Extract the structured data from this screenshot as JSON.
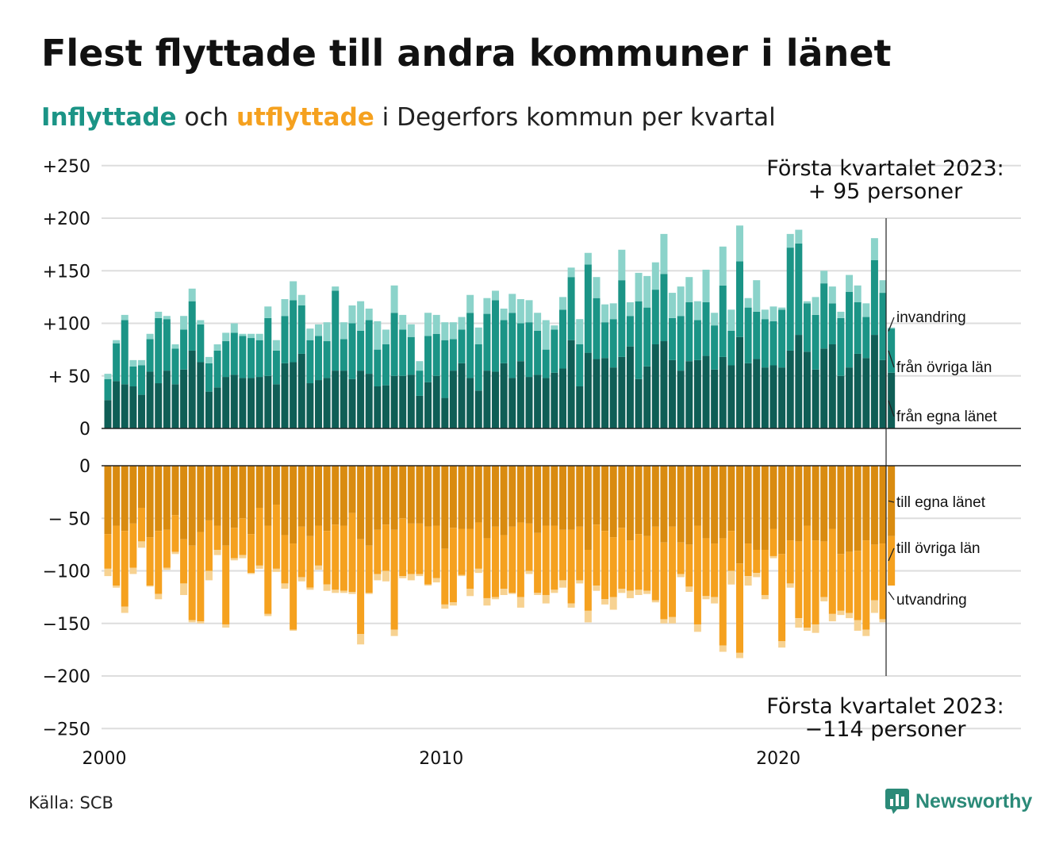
{
  "title": "Flest flyttade till andra kommuner i länet",
  "subtitle": {
    "in_word": "Inflyttade",
    "mid": " och ",
    "out_word": "utflyttade",
    "rest": " i Degerfors kommun per kvartal"
  },
  "colors": {
    "in_egna": "#0f5e56",
    "in_ovriga": "#1b9486",
    "in_invandring": "#8bd3ca",
    "out_egna": "#d98b10",
    "out_ovriga": "#f5a11f",
    "out_utvandring": "#f7d291",
    "grid": "#dddddd",
    "text": "#111111",
    "brand": "#2b8a78"
  },
  "annotations": {
    "top": [
      "Första kvartalet 2023:",
      "+ 95 personer"
    ],
    "bottom": [
      "Första kvartalet 2023:",
      "−114 personer"
    ]
  },
  "source": "Källa: SCB",
  "brand": {
    "name": "Newsworthy",
    "icon": "newsworthy-logo-icon"
  },
  "chart_data": {
    "type": "bar",
    "stacked": true,
    "period": "quarter",
    "first_quarter": "2000-Q1",
    "x_tick_labels": [
      "2000",
      "2010",
      "2020"
    ],
    "grid": true,
    "legend": "inline labels at right end",
    "panels": [
      {
        "name": "in",
        "ylim": [
          0,
          250
        ],
        "y_tick_labels": [
          "+250",
          "+200",
          "+150",
          "+100",
          "+ 50",
          "0"
        ],
        "series": [
          {
            "name": "från egna länet",
            "values": [
              27,
              45,
              42,
              40,
              32,
              54,
              43,
              55,
              42,
              56,
              74,
              63,
              35,
              39,
              49,
              51,
              48,
              48,
              49,
              50,
              42,
              62,
              63,
              71,
              43,
              46,
              48,
              55,
              55,
              47,
              55,
              52,
              40,
              41,
              50,
              50,
              51,
              31,
              44,
              50,
              29,
              55,
              62,
              48,
              36,
              55,
              54,
              62,
              48,
              64,
              49,
              51,
              48,
              53,
              57,
              84,
              40,
              72,
              66,
              67,
              58,
              68,
              78,
              47,
              59,
              80,
              83,
              65,
              55,
              64,
              65,
              69,
              56,
              68,
              60,
              87,
              62,
              66,
              58,
              60,
              58,
              74,
              89,
              73,
              56,
              76,
              80,
              50,
              58,
              71,
              67,
              89,
              65,
              53
            ]
          },
          {
            "name": "från övriga län",
            "values": [
              20,
              36,
              61,
              19,
              28,
              31,
              62,
              49,
              34,
              38,
              47,
              36,
              27,
              35,
              34,
              40,
              40,
              38,
              35,
              55,
              32,
              45,
              59,
              46,
              41,
              42,
              35,
              76,
              30,
              53,
              38,
              51,
              35,
              39,
              60,
              44,
              36,
              24,
              44,
              40,
              55,
              30,
              32,
              62,
              44,
              54,
              68,
              41,
              62,
              36,
              52,
              42,
              27,
              41,
              56,
              60,
              40,
              84,
              58,
              34,
              46,
              73,
              29,
              74,
              56,
              52,
              64,
              40,
              52,
              56,
              38,
              51,
              42,
              68,
              33,
              72,
              53,
              45,
              46,
              42,
              55,
              98,
              87,
              46,
              52,
              62,
              39,
              55,
              72,
              49,
              39,
              71,
              64,
              42
            ]
          },
          {
            "name": "invandring",
            "values": [
              5,
              3,
              5,
              6,
              5,
              5,
              6,
              3,
              4,
              13,
              12,
              4,
              6,
              6,
              8,
              9,
              2,
              4,
              6,
              11,
              10,
              16,
              18,
              10,
              11,
              11,
              18,
              4,
              16,
              17,
              28,
              11,
              27,
              14,
              26,
              14,
              12,
              9,
              22,
              18,
              17,
              16,
              12,
              17,
              16,
              15,
              9,
              11,
              18,
              23,
              21,
              17,
              28,
              4,
              12,
              9,
              24,
              11,
              20,
              17,
              15,
              29,
              13,
              27,
              30,
              26,
              38,
              24,
              28,
              24,
              18,
              31,
              12,
              37,
              20,
              34,
              9,
              30,
              9,
              14,
              2,
              13,
              13,
              2,
              17,
              12,
              16,
              6,
              16,
              16,
              13,
              21,
              12,
              1
            ]
          }
        ],
        "annotation_value": 95
      },
      {
        "name": "out",
        "ylim": [
          -250,
          0
        ],
        "y_tick_labels": [
          "0",
          "− 50",
          "−100",
          "−150",
          "−200",
          "−250"
        ],
        "series": [
          {
            "name": "till egna länet",
            "values": [
              -65,
              -57,
              -62,
              -55,
              -40,
              -68,
              -62,
              -61,
              -47,
              -70,
              -76,
              -63,
              -52,
              -57,
              -76,
              -59,
              -50,
              -65,
              -40,
              -57,
              -37,
              -66,
              -74,
              -58,
              -67,
              -57,
              -62,
              -56,
              -57,
              -45,
              -70,
              -76,
              -61,
              -56,
              -61,
              -50,
              -55,
              -55,
              -58,
              -57,
              -79,
              -59,
              -60,
              -60,
              -54,
              -69,
              -58,
              -66,
              -58,
              -54,
              -55,
              -64,
              -57,
              -57,
              -61,
              -61,
              -58,
              -80,
              -56,
              -62,
              -68,
              -59,
              -71,
              -65,
              -67,
              -58,
              -73,
              -58,
              -73,
              -75,
              -57,
              -69,
              -74,
              -69,
              -62,
              -93,
              -74,
              -80,
              -80,
              -60,
              -84,
              -71,
              -72,
              -57,
              -71,
              -72,
              -60,
              -84,
              -82,
              -81,
              -71,
              -75,
              -74,
              -67
            ]
          },
          {
            "name": "till övriga län",
            "values": [
              -33,
              -57,
              -72,
              -42,
              -32,
              -46,
              -60,
              -36,
              -35,
              -42,
              -71,
              -85,
              -48,
              -23,
              -75,
              -29,
              -35,
              -37,
              -55,
              -84,
              -61,
              -46,
              -82,
              -48,
              -49,
              -38,
              -51,
              -62,
              -62,
              -75,
              -90,
              -45,
              -42,
              -44,
              -95,
              -55,
              -48,
              -48,
              -55,
              -50,
              -53,
              -71,
              -44,
              -57,
              -44,
              -57,
              -67,
              -51,
              -63,
              -71,
              -45,
              -57,
              -66,
              -61,
              -48,
              -70,
              -51,
              -58,
              -58,
              -65,
              -57,
              -58,
              -48,
              -53,
              -52,
              -70,
              -73,
              -86,
              -30,
              -40,
              -94,
              -55,
              -51,
              -102,
              -38,
              -85,
              -31,
              -22,
              -43,
              -26,
              -83,
              -41,
              -73,
              -97,
              -80,
              -53,
              -81,
              -54,
              -58,
              -66,
              -85,
              -53,
              -72,
              -47
            ]
          },
          {
            "name": "utvandring",
            "values": [
              -7,
              -2,
              -6,
              -6,
              -6,
              -1,
              -5,
              -2,
              -2,
              -11,
              -2,
              -2,
              -9,
              -5,
              -3,
              -2,
              -3,
              -1,
              -3,
              -2,
              -3,
              -5,
              -1,
              -4,
              -2,
              -4,
              -6,
              -3,
              -2,
              -2,
              -10,
              -1,
              -6,
              -10,
              -6,
              -2,
              -6,
              -2,
              -1,
              -4,
              -4,
              -3,
              -1,
              -7,
              -4,
              -7,
              -2,
              -6,
              -1,
              -10,
              -3,
              -2,
              -8,
              -3,
              -7,
              -4,
              -3,
              -11,
              -5,
              -5,
              -12,
              -4,
              -7,
              -5,
              -3,
              -2,
              -4,
              -6,
              -3,
              -5,
              -7,
              -3,
              -6,
              -6,
              -13,
              -5,
              -9,
              -4,
              -4,
              -2,
              -6,
              -4,
              -9,
              -3,
              -8,
              -4,
              -7,
              -4,
              -5,
              -10,
              -6,
              -12,
              -3,
              0
            ]
          }
        ],
        "annotation_value": -114
      }
    ]
  }
}
